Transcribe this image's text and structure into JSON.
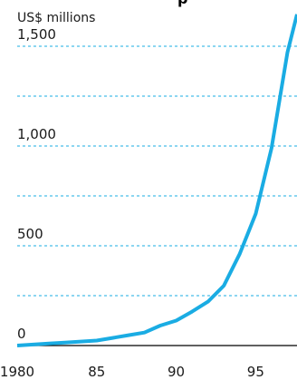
{
  "chart_data": {
    "type": "line",
    "title_fragment": "p",
    "unit_label": "US$ millions",
    "ylim": [
      0,
      1650
    ],
    "xlim": [
      1980,
      1997.6
    ],
    "y_ticks": [
      {
        "value": 0,
        "label": "0"
      },
      {
        "value": 500,
        "label": "500"
      },
      {
        "value": 1000,
        "label": "1,000"
      },
      {
        "value": 1500,
        "label": "1,500"
      }
    ],
    "y_grid_values": [
      250,
      500,
      750,
      1000,
      1250,
      1500
    ],
    "x_ticks": [
      {
        "value": 1980,
        "label": "1980"
      },
      {
        "value": 1985,
        "label": "85"
      },
      {
        "value": 1990,
        "label": "90"
      },
      {
        "value": 1995,
        "label": "95"
      }
    ],
    "grid": "horizontal-dashed",
    "line_color": "#1aace3",
    "series": [
      {
        "x": [
          1980,
          1981,
          1982,
          1983,
          1984,
          1985,
          1986,
          1987,
          1988,
          1989,
          1990,
          1991,
          1992,
          1993,
          1994,
          1995,
          1996,
          1997,
          1997.6
        ],
        "values": [
          0,
          5,
          10,
          15,
          20,
          25,
          38,
          52,
          65,
          100,
          125,
          170,
          220,
          300,
          460,
          660,
          990,
          1470,
          1660
        ]
      }
    ]
  }
}
